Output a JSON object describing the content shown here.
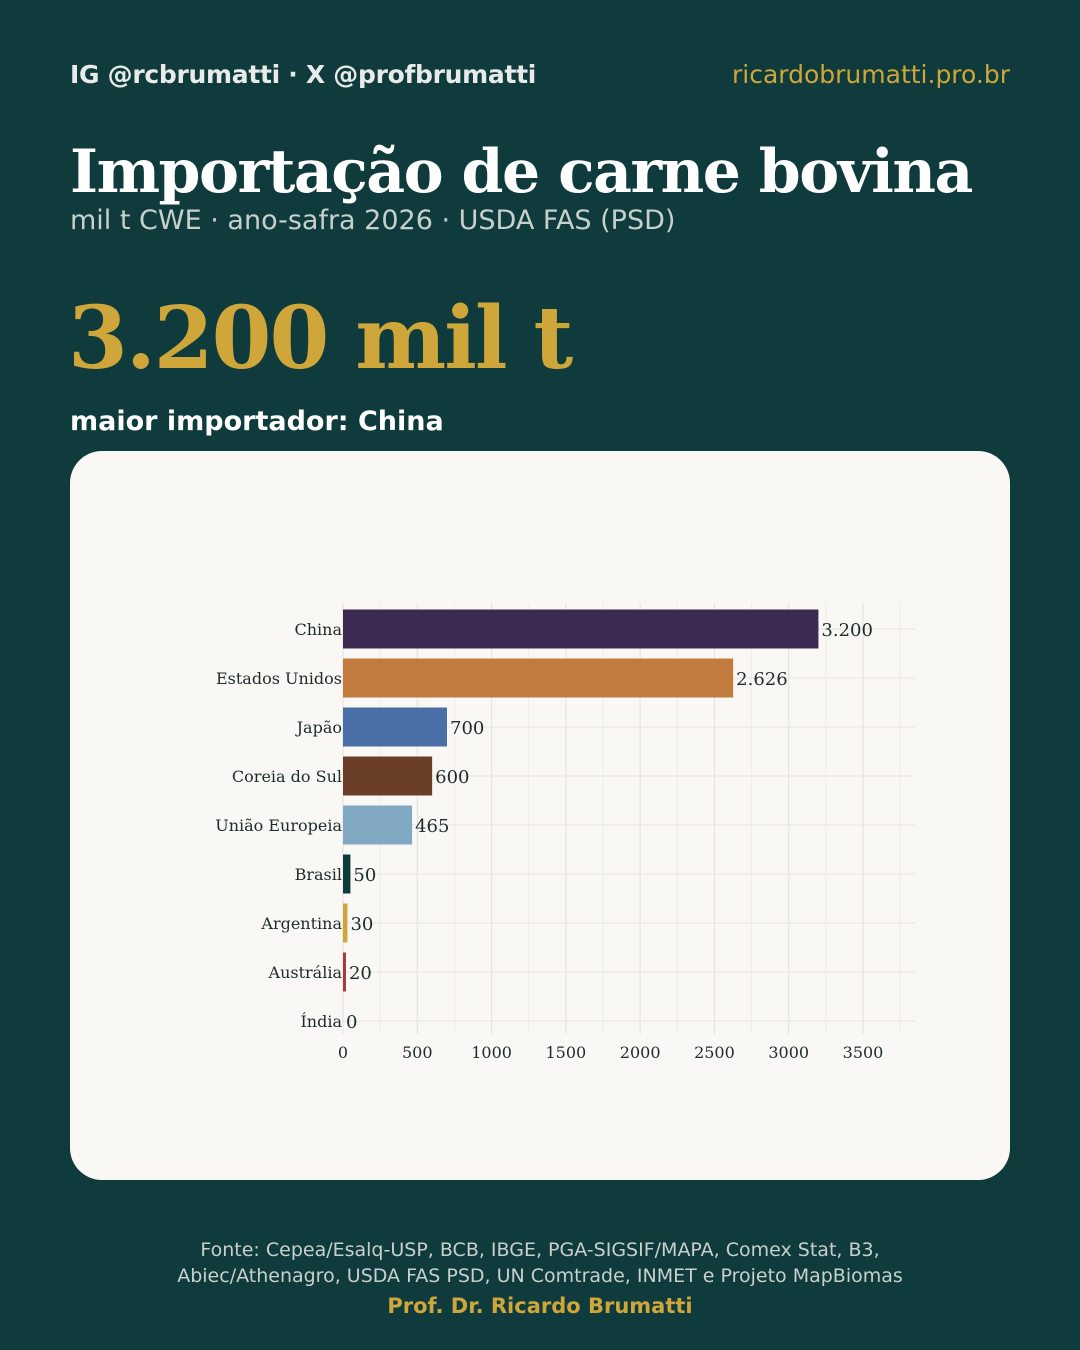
{
  "header": {
    "handles": "IG @rcbrumatti · X @profbrumatti",
    "site": "ricardobrumatti.pro.br"
  },
  "title": "Importação de carne bovina",
  "subtitle": "mil t CWE · ano-safra 2026 · USDA FAS (PSD)",
  "headline_value": "3.200 mil t",
  "top_label": "maior importador: China",
  "chart_data": {
    "type": "bar",
    "orientation": "horizontal",
    "categories": [
      "China",
      "Estados Unidos",
      "Japão",
      "Coreia do Sul",
      "União Europeia",
      "Brasil",
      "Argentina",
      "Austrália",
      "Índia"
    ],
    "values": [
      3200,
      2626,
      700,
      600,
      465,
      50,
      30,
      20,
      0
    ],
    "value_labels": [
      "3.200",
      "2.626",
      "700",
      "600",
      "465",
      "50",
      "30",
      "20",
      "0"
    ],
    "colors": [
      "#3d2a52",
      "#c17b3e",
      "#4a6ea6",
      "#6b3f27",
      "#82a9c3",
      "#0f3b3c",
      "#cfa63a",
      "#a63a3a",
      "#7a7a7a"
    ],
    "xticks": [
      0,
      500,
      1000,
      1500,
      2000,
      2500,
      3000,
      3500
    ],
    "xlim": [
      0,
      3850
    ],
    "grid": true,
    "legend": "none"
  },
  "footer": {
    "source_line1": "Fonte: Cepea/Esalq-USP, BCB, IBGE, PGA-SIGSIF/MAPA, Comex Stat, B3,",
    "source_line2": "Abiec/Athenagro, USDA FAS PSD, UN Comtrade, INMET e Projeto MapBiomas",
    "author": "Prof. Dr. Ricardo Brumatti"
  }
}
